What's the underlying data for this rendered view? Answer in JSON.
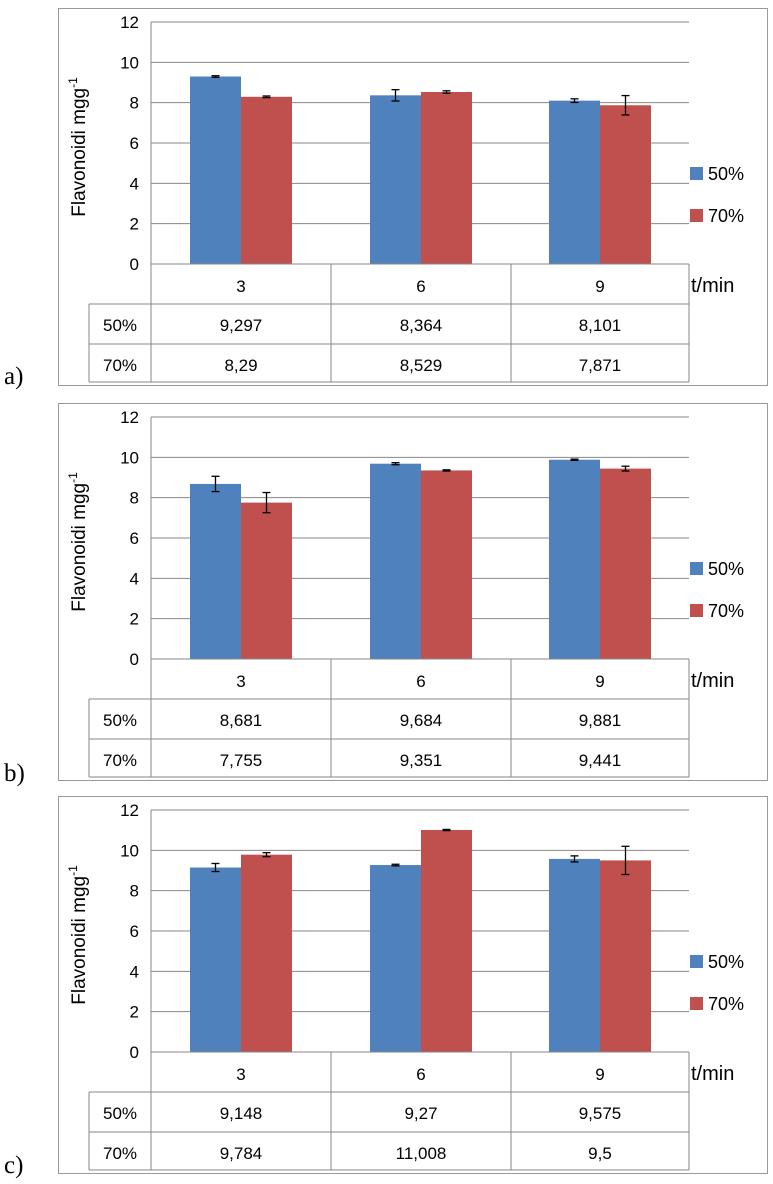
{
  "chart_data": [
    {
      "panel_label": "a)",
      "type": "bar",
      "ylabel": "Flavonoidi mgg",
      "ylabel_sup": "-1",
      "xlabel": "t/min",
      "categories": [
        "3",
        "6",
        "9"
      ],
      "ylim": [
        0,
        12
      ],
      "yticks": [
        "0",
        "2",
        "4",
        "6",
        "8",
        "10",
        "12"
      ],
      "grid": true,
      "legend_position": "right",
      "series": [
        {
          "name": "50%",
          "color": "#4f81bd",
          "values": [
            9.297,
            8.364,
            8.101
          ],
          "errors": [
            0.04,
            0.28,
            0.09
          ],
          "table_values": [
            "9,297",
            "8,364",
            "8,101"
          ]
        },
        {
          "name": "70%",
          "color": "#c0504d",
          "values": [
            8.29,
            8.529,
            7.871
          ],
          "errors": [
            0.04,
            0.06,
            0.48
          ],
          "table_values": [
            "8,29",
            "8,529",
            "7,871"
          ]
        }
      ]
    },
    {
      "panel_label": "b)",
      "type": "bar",
      "ylabel": "Flavonoidi mgg",
      "ylabel_sup": "-1",
      "xlabel": "t/min",
      "categories": [
        "3",
        "6",
        "9"
      ],
      "ylim": [
        0,
        12
      ],
      "yticks": [
        "0",
        "2",
        "4",
        "6",
        "8",
        "10",
        "12"
      ],
      "grid": true,
      "legend_position": "right",
      "series": [
        {
          "name": "50%",
          "color": "#4f81bd",
          "values": [
            8.681,
            9.684,
            9.881
          ],
          "errors": [
            0.38,
            0.05,
            0.03
          ],
          "table_values": [
            "8,681",
            "9,684",
            "9,881"
          ]
        },
        {
          "name": "70%",
          "color": "#c0504d",
          "values": [
            7.755,
            9.351,
            9.441
          ],
          "errors": [
            0.5,
            0.03,
            0.12
          ],
          "table_values": [
            "7,755",
            "9,351",
            "9,441"
          ]
        }
      ]
    },
    {
      "panel_label": "c)",
      "type": "bar",
      "ylabel": "Flavonoidi mgg",
      "ylabel_sup": "-1",
      "xlabel": "t/min",
      "categories": [
        "3",
        "6",
        "9"
      ],
      "ylim": [
        0,
        12
      ],
      "yticks": [
        "0",
        "2",
        "4",
        "6",
        "8",
        "10",
        "12"
      ],
      "grid": true,
      "legend_position": "right",
      "series": [
        {
          "name": "50%",
          "color": "#4f81bd",
          "values": [
            9.148,
            9.27,
            9.575
          ],
          "errors": [
            0.2,
            0.04,
            0.15
          ],
          "table_values": [
            "9,148",
            "9,27",
            "9,575"
          ]
        },
        {
          "name": "70%",
          "color": "#c0504d",
          "values": [
            9.784,
            11.008,
            9.5
          ],
          "errors": [
            0.1,
            0.03,
            0.7
          ],
          "table_values": [
            "9,784",
            "11,008",
            "9,5"
          ]
        }
      ]
    }
  ]
}
